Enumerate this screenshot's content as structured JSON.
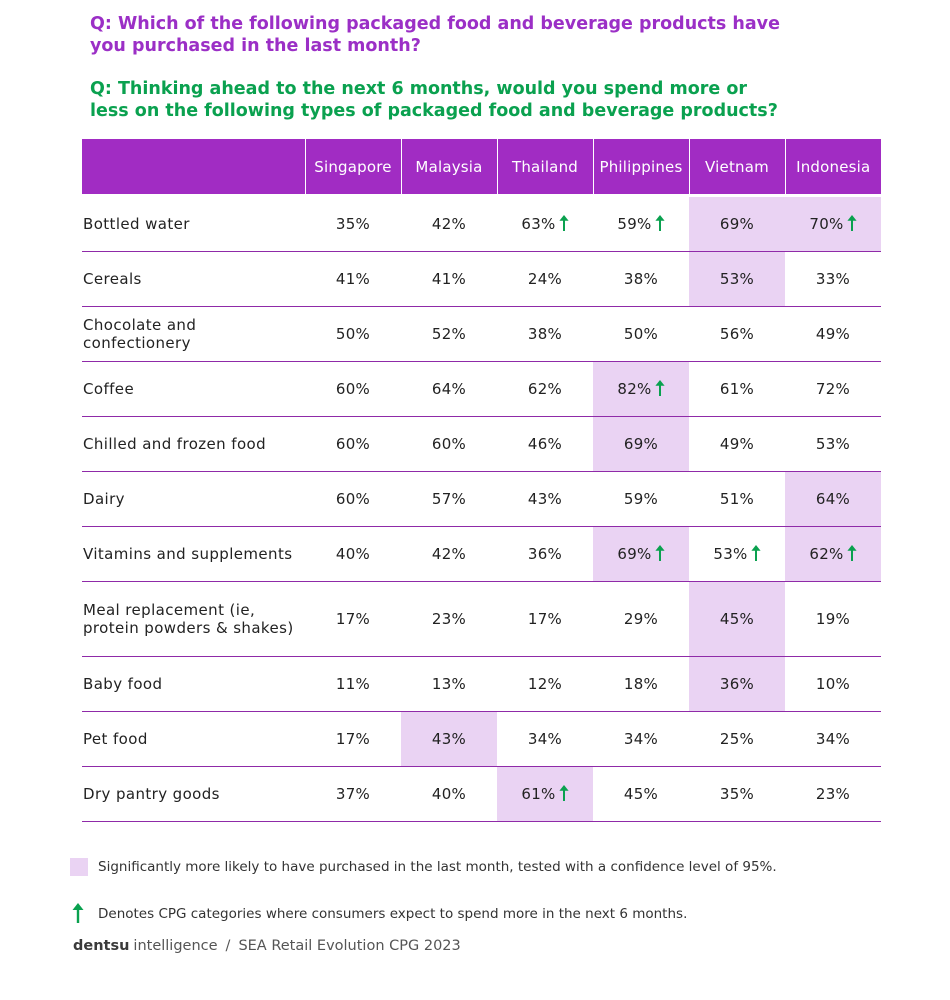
{
  "question1": "Q: Which of the following packaged food and beverage products have you purchased in the last month?",
  "question2": "Q: Thinking ahead to the next 6 months, would you spend more or less on the following types of packaged food and beverage products?",
  "colors": {
    "header": "#a12cc3",
    "highlight": "#ead3f3",
    "arrow": "#0aa14f",
    "q1": "#9b2fc6",
    "q2": "#0aa14f"
  },
  "chart_data": {
    "type": "table",
    "columns": [
      "Singapore",
      "Malaysia",
      "Thailand",
      "Philippines",
      "Vietnam",
      "Indonesia"
    ],
    "rows": [
      {
        "label": "Bottled water",
        "values": [
          "35%",
          "42%",
          "63%",
          "59%",
          "69%",
          "70%"
        ],
        "highlight": [
          false,
          false,
          false,
          false,
          true,
          true
        ],
        "arrow": [
          false,
          false,
          true,
          true,
          false,
          true
        ]
      },
      {
        "label": "Cereals",
        "values": [
          "41%",
          "41%",
          "24%",
          "38%",
          "53%",
          "33%"
        ],
        "highlight": [
          false,
          false,
          false,
          false,
          true,
          false
        ],
        "arrow": [
          false,
          false,
          false,
          false,
          false,
          false
        ]
      },
      {
        "label": "Chocolate and confectionery",
        "values": [
          "50%",
          "52%",
          "38%",
          "50%",
          "56%",
          "49%"
        ],
        "highlight": [
          false,
          false,
          false,
          false,
          false,
          false
        ],
        "arrow": [
          false,
          false,
          false,
          false,
          false,
          false
        ]
      },
      {
        "label": "Coffee",
        "values": [
          "60%",
          "64%",
          "62%",
          "82%",
          "61%",
          "72%"
        ],
        "highlight": [
          false,
          false,
          false,
          true,
          false,
          false
        ],
        "arrow": [
          false,
          false,
          false,
          true,
          false,
          false
        ]
      },
      {
        "label": "Chilled and frozen food",
        "values": [
          "60%",
          "60%",
          "46%",
          "69%",
          "49%",
          "53%"
        ],
        "highlight": [
          false,
          false,
          false,
          true,
          false,
          false
        ],
        "arrow": [
          false,
          false,
          false,
          false,
          false,
          false
        ]
      },
      {
        "label": "Dairy",
        "values": [
          "60%",
          "57%",
          "43%",
          "59%",
          "51%",
          "64%"
        ],
        "highlight": [
          false,
          false,
          false,
          false,
          false,
          true
        ],
        "arrow": [
          false,
          false,
          false,
          false,
          false,
          false
        ]
      },
      {
        "label": "Vitamins and supplements",
        "values": [
          "40%",
          "42%",
          "36%",
          "69%",
          "53%",
          "62%"
        ],
        "highlight": [
          false,
          false,
          false,
          true,
          false,
          true
        ],
        "arrow": [
          false,
          false,
          false,
          true,
          true,
          true
        ]
      },
      {
        "label": "Meal replacement (ie, protein powders & shakes)",
        "values": [
          "17%",
          "23%",
          "17%",
          "29%",
          "45%",
          "19%"
        ],
        "highlight": [
          false,
          false,
          false,
          false,
          true,
          false
        ],
        "arrow": [
          false,
          false,
          false,
          false,
          false,
          false
        ],
        "tall": true
      },
      {
        "label": "Baby food",
        "values": [
          "11%",
          "13%",
          "12%",
          "18%",
          "36%",
          "10%"
        ],
        "highlight": [
          false,
          false,
          false,
          false,
          true,
          false
        ],
        "arrow": [
          false,
          false,
          false,
          false,
          false,
          false
        ]
      },
      {
        "label": "Pet food",
        "values": [
          "17%",
          "43%",
          "34%",
          "34%",
          "25%",
          "34%"
        ],
        "highlight": [
          false,
          true,
          false,
          false,
          false,
          false
        ],
        "arrow": [
          false,
          false,
          false,
          false,
          false,
          false
        ]
      },
      {
        "label": "Dry pantry goods",
        "values": [
          "37%",
          "40%",
          "61%",
          "45%",
          "35%",
          "23%"
        ],
        "highlight": [
          false,
          false,
          true,
          false,
          false,
          false
        ],
        "arrow": [
          false,
          false,
          true,
          false,
          false,
          false
        ]
      }
    ]
  },
  "legend": {
    "highlight_text": "Significantly more likely to have purchased in the last month, tested with a confidence level of 95%.",
    "arrow_text": "Denotes CPG categories where consumers expect to spend more in the next 6 months."
  },
  "footer": {
    "brand": "dentsu",
    "brand_suffix": "intelligence",
    "separator": "/",
    "source": "SEA Retail Evolution CPG 2023"
  }
}
